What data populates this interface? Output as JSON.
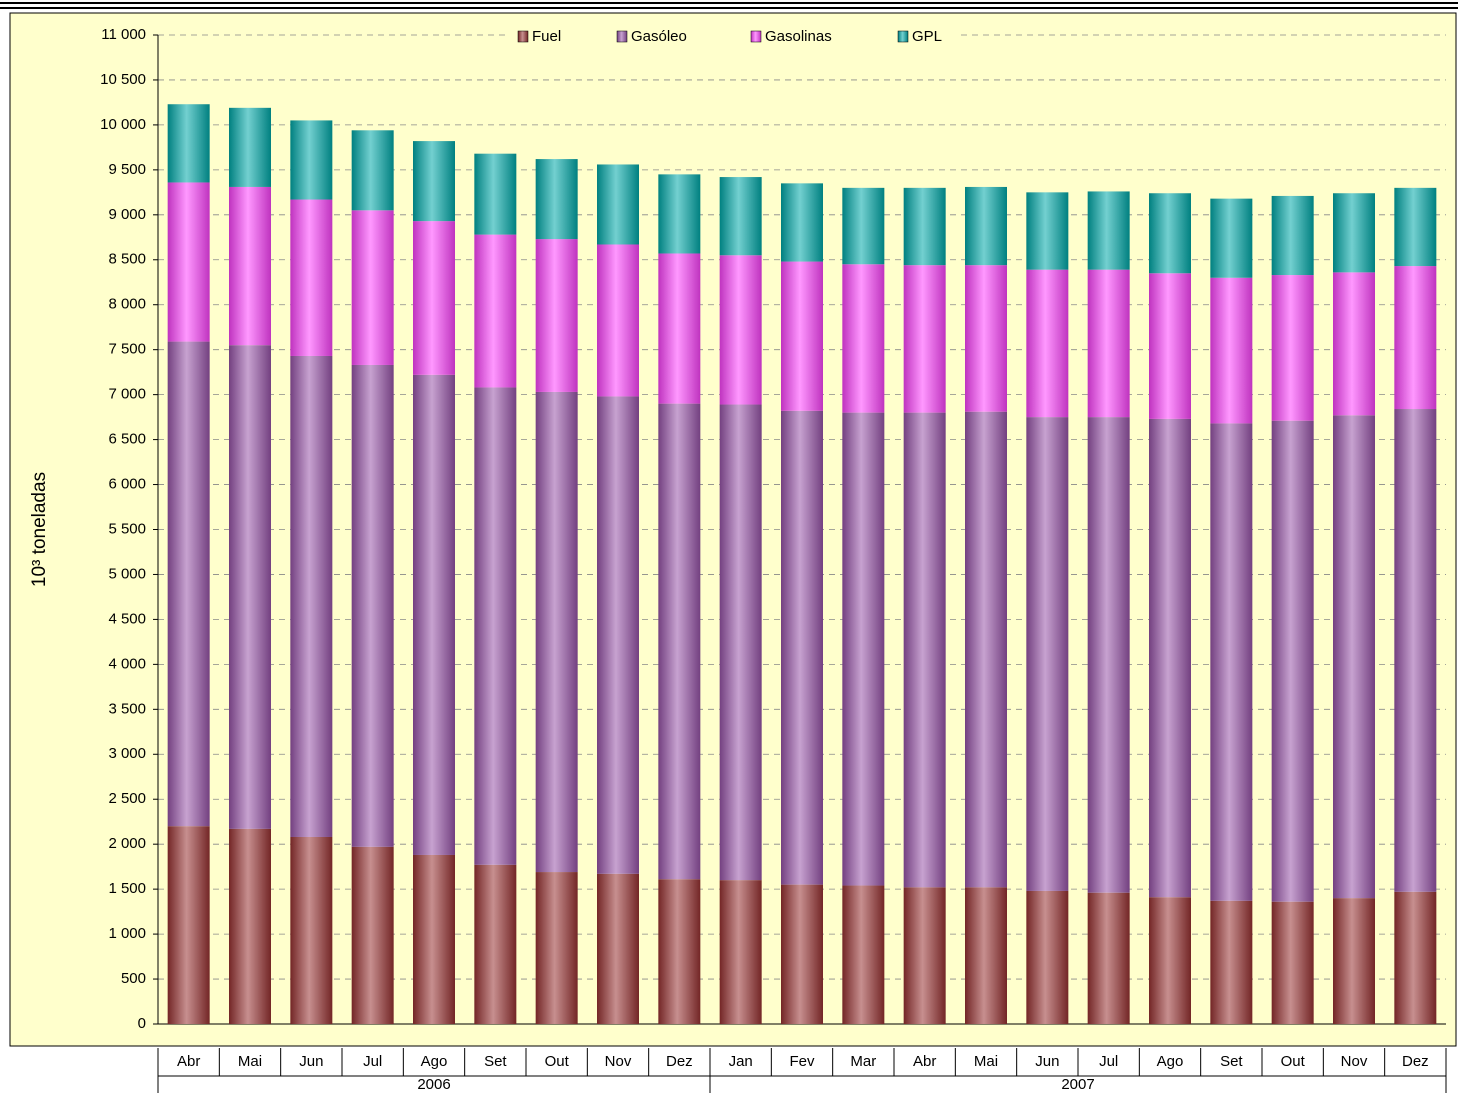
{
  "chart_data": {
    "type": "stacked_bar",
    "y_label": "10³ toneladas",
    "categories": [
      "Abr",
      "Mai",
      "Jun",
      "Jul",
      "Ago",
      "Set",
      "Out",
      "Nov",
      "Dez",
      "Jan",
      "Fev",
      "Mar",
      "Abr",
      "Mai",
      "Jun",
      "Jul",
      "Ago",
      "Set",
      "Out",
      "Nov",
      "Dez"
    ],
    "category_groups": [
      {
        "label": "2006",
        "count": 9
      },
      {
        "label": "2007",
        "count": 12
      }
    ],
    "series": [
      {
        "name": "Fuel",
        "color": "#993333",
        "values": [
          2200,
          2170,
          2080,
          1970,
          1880,
          1770,
          1690,
          1670,
          1610,
          1600,
          1550,
          1540,
          1520,
          1520,
          1480,
          1460,
          1410,
          1370,
          1360,
          1400,
          1470
        ]
      },
      {
        "name": "Gasóleo",
        "color": "#9955aa",
        "values": [
          5390,
          5380,
          5350,
          5360,
          5340,
          5310,
          5340,
          5310,
          5290,
          5290,
          5270,
          5260,
          5280,
          5290,
          5270,
          5290,
          5320,
          5310,
          5350,
          5370,
          5370
        ]
      },
      {
        "name": "Gasolinas",
        "color": "#ff44ff",
        "values": [
          1770,
          1760,
          1740,
          1720,
          1710,
          1700,
          1700,
          1690,
          1670,
          1660,
          1660,
          1650,
          1640,
          1630,
          1640,
          1640,
          1620,
          1620,
          1620,
          1590,
          1590
        ]
      },
      {
        "name": "GPL",
        "color": "#00aaaa",
        "values": [
          870,
          880,
          880,
          890,
          890,
          900,
          890,
          890,
          880,
          870,
          870,
          850,
          860,
          870,
          860,
          870,
          890,
          880,
          880,
          880,
          870
        ]
      }
    ],
    "ylim": [
      0,
      11000
    ],
    "yticks": [
      0,
      500,
      {
        "value": 1000,
        "label": "1 000"
      },
      {
        "value": 1500,
        "label": "1 500"
      },
      {
        "value": 2000,
        "label": "2 000"
      },
      {
        "value": 2500,
        "label": "2 500"
      },
      {
        "value": 3000,
        "label": "3 000"
      },
      {
        "value": 3500,
        "label": "3 500"
      },
      {
        "value": 4000,
        "label": "4 000"
      },
      {
        "value": 4500,
        "label": "4 500"
      },
      {
        "value": 5000,
        "label": "5 000"
      },
      {
        "value": 5500,
        "label": "5 500"
      },
      {
        "value": 6000,
        "label": "6 000"
      },
      {
        "value": 6500,
        "label": "6 500"
      },
      {
        "value": 7000,
        "label": "7 000"
      },
      {
        "value": 7500,
        "label": "7 500"
      },
      {
        "value": 8000,
        "label": "8 000"
      },
      {
        "value": 8500,
        "label": "8 500"
      },
      {
        "value": 9000,
        "label": "9 000"
      },
      {
        "value": 9500,
        "label": "9 500"
      },
      {
        "value": 10000,
        "label": "10 000"
      },
      {
        "value": 10500,
        "label": "10 500"
      },
      {
        "value": 11000,
        "label": "11 000"
      }
    ],
    "grid": true,
    "legend": "top"
  }
}
